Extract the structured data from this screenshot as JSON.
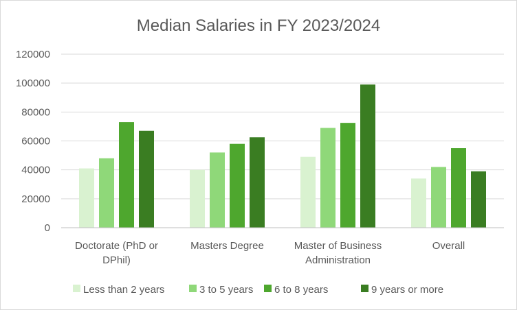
{
  "chart_data": {
    "type": "bar",
    "title": "Median Salaries in FY 2023/2024",
    "categories": [
      [
        "Doctorate (PhD or",
        "DPhil)"
      ],
      [
        "Masters Degree"
      ],
      [
        "Master of Business",
        "Administration"
      ],
      [
        "Overall"
      ]
    ],
    "series": [
      {
        "name": "Less than 2 years",
        "color": "#d9f2d0",
        "values": [
          41000,
          40000,
          49000,
          34000
        ]
      },
      {
        "name": "3 to 5 years",
        "color": "#8fd879",
        "values": [
          48000,
          52000,
          69000,
          42000
        ]
      },
      {
        "name": "6 to 8 years",
        "color": "#4ea72e",
        "values": [
          73000,
          58000,
          72500,
          55000
        ]
      },
      {
        "name": "9 years or more",
        "color": "#3a7d22",
        "values": [
          67000,
          62500,
          99000,
          39000
        ]
      }
    ],
    "ylim": [
      0,
      120000
    ],
    "yticks": [
      "0",
      "20000",
      "40000",
      "60000",
      "80000",
      "100000",
      "120000"
    ],
    "grid": true,
    "legend_position": "bottom"
  }
}
